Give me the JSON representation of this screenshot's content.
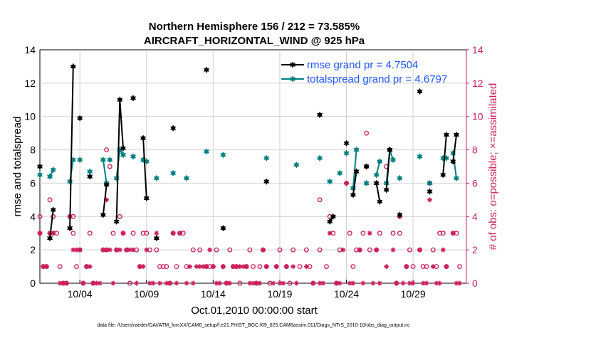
{
  "title_line1": "Northern Hemisphere 156 / 212 = 73.585%",
  "title_line2": "AIRCRAFT_HORIZONTAL_WIND @ 925 hPa",
  "xlabel": "Oct.01,2010 00:00:00 start",
  "ylabel_left": "rmse and totalspread",
  "ylabel_right": "# of obs: o=possible; ×=assimilated",
  "footer": "data file: /Users/raeder/DAI/ATM_forcXX/CAM6_setup/f.e21.FHIST_BGC.f09_025.CAM6assim.011/Diags_NTrS_2010-10/obs_diag_output.nc",
  "chart_data": {
    "type": "line",
    "xlim": [
      1,
      33
    ],
    "ylim_left": [
      0,
      14
    ],
    "ylim_right": [
      0,
      14
    ],
    "xticks": [
      {
        "x": 4,
        "label": "10/04"
      },
      {
        "x": 9,
        "label": "10/09"
      },
      {
        "x": 14,
        "label": "10/14"
      },
      {
        "x": 19,
        "label": "10/19"
      },
      {
        "x": 24,
        "label": "10/24"
      },
      {
        "x": 29,
        "label": "10/29"
      }
    ],
    "yticks_left": [
      "0",
      "2",
      "4",
      "6",
      "8",
      "10",
      "12",
      "14"
    ],
    "yticks_right": [
      "0",
      "2",
      "4",
      "6",
      "8",
      "10",
      "12",
      "14"
    ],
    "legend": [
      {
        "label": "rmse grand pr = 4.7504",
        "color": "#000000",
        "marker": "hexagram"
      },
      {
        "label": "totalspread grand pr = 4.6797",
        "color": "#008080",
        "marker": "hexagram"
      }
    ],
    "colors": {
      "rmse": "#000000",
      "spread": "#008080",
      "obs": "#cc1f5a",
      "legend_text": "#1a53ff"
    },
    "rmse_segments": [
      [
        [
          1.0,
          7.0
        ]
      ],
      [
        [
          1.75,
          2.7
        ],
        [
          2.0,
          4.4
        ]
      ],
      [
        [
          3.25,
          3.3
        ],
        [
          3.5,
          13.0
        ]
      ],
      [
        [
          4.0,
          9.9
        ]
      ],
      [
        [
          4.75,
          6.4
        ]
      ],
      [
        [
          5.75,
          4.1
        ],
        [
          6.0,
          5.9
        ]
      ],
      [
        [
          6.75,
          3.7
        ],
        [
          7.0,
          11.0
        ],
        [
          7.25,
          8.1
        ]
      ],
      [
        [
          8.0,
          11.1
        ]
      ],
      [
        [
          8.75,
          8.7
        ],
        [
          9.0,
          5.1
        ]
      ],
      [
        [
          9.75,
          2.7
        ]
      ],
      [
        [
          11.0,
          9.3
        ]
      ],
      [
        [
          13.5,
          12.8
        ]
      ],
      [
        [
          14.75,
          3.3
        ]
      ],
      [
        [
          18.0,
          6.1
        ]
      ],
      [
        [
          22.0,
          10.1
        ]
      ],
      [
        [
          22.75,
          3.7
        ],
        [
          23.0,
          4.0
        ]
      ],
      [
        [
          24.0,
          8.4
        ]
      ],
      [
        [
          24.5,
          5.3
        ],
        [
          24.75,
          6.7
        ]
      ],
      [
        [
          25.5,
          7.0
        ]
      ],
      [
        [
          26.25,
          6.0
        ],
        [
          26.5,
          4.9
        ]
      ],
      [
        [
          27.0,
          5.6
        ],
        [
          27.25,
          8.0
        ]
      ],
      [
        [
          28.0,
          4.1
        ]
      ],
      [
        [
          29.5,
          11.5
        ]
      ],
      [
        [
          30.25,
          5.5
        ]
      ],
      [
        [
          31.25,
          6.5
        ],
        [
          31.5,
          8.9
        ]
      ],
      [
        [
          32.0,
          7.3
        ],
        [
          32.25,
          8.9
        ]
      ]
    ],
    "spread_segments": [
      [
        [
          1.0,
          6.5
        ]
      ],
      [
        [
          1.75,
          6.4
        ],
        [
          2.0,
          6.8
        ]
      ],
      [
        [
          3.25,
          6.1
        ],
        [
          3.5,
          7.4
        ]
      ],
      [
        [
          4.0,
          7.4
        ]
      ],
      [
        [
          4.75,
          6.7
        ]
      ],
      [
        [
          5.75,
          7.4
        ],
        [
          6.0,
          6.0
        ]
      ],
      [
        [
          6.25,
          7.4
        ]
      ],
      [
        [
          6.75,
          6.3
        ],
        [
          7.0,
          8.0
        ],
        [
          7.25,
          7.7
        ]
      ],
      [
        [
          8.0,
          7.6
        ]
      ],
      [
        [
          8.75,
          7.4
        ],
        [
          9.0,
          7.3
        ]
      ],
      [
        [
          9.75,
          6.3
        ]
      ],
      [
        [
          11.0,
          6.6
        ]
      ],
      [
        [
          12.0,
          6.3
        ]
      ],
      [
        [
          13.5,
          7.9
        ]
      ],
      [
        [
          14.75,
          7.7
        ]
      ],
      [
        [
          18.0,
          7.5
        ]
      ],
      [
        [
          20.25,
          7.1
        ]
      ],
      [
        [
          22.0,
          7.5
        ]
      ],
      [
        [
          22.75,
          6.1
        ]
      ],
      [
        [
          23.5,
          6.6
        ]
      ],
      [
        [
          24.0,
          7.8
        ]
      ],
      [
        [
          24.5,
          5.7
        ],
        [
          24.75,
          8.0
        ]
      ],
      [
        [
          25.5,
          6.0
        ]
      ],
      [
        [
          26.25,
          6.5
        ],
        [
          26.5,
          7.3
        ]
      ],
      [
        [
          27.0,
          6.0
        ],
        [
          27.25,
          8.0
        ],
        [
          27.5,
          7.4
        ]
      ],
      [
        [
          28.0,
          6.3
        ]
      ],
      [
        [
          29.5,
          7.6
        ]
      ],
      [
        [
          30.25,
          6.0
        ]
      ],
      [
        [
          31.25,
          7.5
        ],
        [
          31.5,
          7.5
        ]
      ],
      [
        [
          32.0,
          7.8
        ],
        [
          32.25,
          6.3
        ]
      ]
    ],
    "obs_possible": [
      [
        1.0,
        4
      ],
      [
        1.0,
        3
      ],
      [
        1.25,
        1
      ],
      [
        1.5,
        1
      ],
      [
        1.75,
        3
      ],
      [
        2.0,
        3
      ],
      [
        1.75,
        5
      ],
      [
        2.0,
        4
      ],
      [
        2.25,
        3
      ],
      [
        2.5,
        1
      ],
      [
        2.75,
        0
      ],
      [
        3.0,
        0
      ],
      [
        3.25,
        4
      ],
      [
        3.5,
        4
      ],
      [
        3.5,
        3
      ],
      [
        3.75,
        1
      ],
      [
        4.0,
        2
      ],
      [
        4.25,
        0
      ],
      [
        4.5,
        1
      ],
      [
        4.75,
        3
      ],
      [
        5.0,
        0
      ],
      [
        5.75,
        2
      ],
      [
        6.0,
        2
      ],
      [
        6.0,
        8
      ],
      [
        6.25,
        7
      ],
      [
        6.5,
        3
      ],
      [
        6.75,
        2
      ],
      [
        7.0,
        4
      ],
      [
        7.25,
        3
      ],
      [
        7.5,
        2
      ],
      [
        7.75,
        0
      ],
      [
        8.0,
        3
      ],
      [
        8.25,
        2
      ],
      [
        8.5,
        1
      ],
      [
        8.75,
        3
      ],
      [
        9.0,
        3
      ],
      [
        9.25,
        2
      ],
      [
        9.75,
        2
      ],
      [
        10.0,
        1
      ],
      [
        10.25,
        1
      ],
      [
        10.5,
        1
      ],
      [
        10.75,
        0
      ],
      [
        11.0,
        3
      ],
      [
        11.25,
        1
      ],
      [
        11.5,
        3
      ],
      [
        11.75,
        3
      ],
      [
        12.0,
        1
      ],
      [
        12.5,
        2
      ],
      [
        13.0,
        2
      ],
      [
        13.5,
        1
      ],
      [
        13.75,
        1
      ],
      [
        14.0,
        1
      ],
      [
        14.25,
        2
      ],
      [
        14.75,
        1
      ],
      [
        15.0,
        0
      ],
      [
        15.25,
        2
      ],
      [
        15.5,
        1
      ],
      [
        15.75,
        1
      ],
      [
        16.0,
        0
      ],
      [
        16.5,
        1
      ],
      [
        16.75,
        2
      ],
      [
        17.0,
        1
      ],
      [
        17.25,
        0
      ],
      [
        17.5,
        1
      ],
      [
        17.75,
        2
      ],
      [
        18.0,
        1
      ],
      [
        18.25,
        0
      ],
      [
        18.75,
        1
      ],
      [
        19.0,
        2
      ],
      [
        19.5,
        1
      ],
      [
        19.75,
        0
      ],
      [
        20.0,
        2
      ],
      [
        20.5,
        1
      ],
      [
        21.0,
        2
      ],
      [
        21.25,
        1
      ],
      [
        21.5,
        0
      ],
      [
        22.0,
        2
      ],
      [
        22.0,
        5
      ],
      [
        22.5,
        1
      ],
      [
        22.75,
        4
      ],
      [
        23.0,
        3
      ],
      [
        23.25,
        0
      ],
      [
        23.5,
        2
      ],
      [
        24.0,
        6
      ],
      [
        24.25,
        3
      ],
      [
        24.5,
        1
      ],
      [
        24.75,
        2
      ],
      [
        25.0,
        2
      ],
      [
        25.25,
        3
      ],
      [
        25.5,
        7
      ],
      [
        25.5,
        9
      ],
      [
        25.75,
        2
      ],
      [
        26.25,
        2
      ],
      [
        26.5,
        3
      ],
      [
        27.0,
        7
      ],
      [
        27.25,
        8
      ],
      [
        27.5,
        3
      ],
      [
        27.75,
        0
      ],
      [
        28.0,
        4
      ],
      [
        28.0,
        3
      ],
      [
        28.5,
        1
      ],
      [
        28.75,
        2
      ],
      [
        29.0,
        1
      ],
      [
        29.5,
        2
      ],
      [
        29.75,
        1
      ],
      [
        30.0,
        1
      ],
      [
        30.25,
        6
      ],
      [
        30.5,
        2
      ],
      [
        30.75,
        1
      ],
      [
        31.0,
        3
      ],
      [
        31.25,
        3
      ],
      [
        31.5,
        1
      ],
      [
        32.0,
        3
      ],
      [
        32.25,
        3
      ],
      [
        32.5,
        1
      ]
    ],
    "obs_assimilated": [
      [
        1.0,
        3
      ],
      [
        1.25,
        1
      ],
      [
        1.5,
        1
      ],
      [
        1.75,
        3
      ],
      [
        2.0,
        3
      ],
      [
        2.5,
        0
      ],
      [
        2.75,
        0
      ],
      [
        3.0,
        0
      ],
      [
        3.25,
        4
      ],
      [
        3.5,
        2
      ],
      [
        3.75,
        2
      ],
      [
        4.0,
        2
      ],
      [
        4.25,
        0
      ],
      [
        4.5,
        1
      ],
      [
        4.75,
        1
      ],
      [
        5.0,
        0
      ],
      [
        5.25,
        0
      ],
      [
        5.5,
        0
      ],
      [
        5.75,
        2
      ],
      [
        6.0,
        5
      ],
      [
        6.0,
        2
      ],
      [
        6.25,
        2
      ],
      [
        6.5,
        0
      ],
      [
        6.75,
        2
      ],
      [
        7.0,
        2
      ],
      [
        7.25,
        3
      ],
      [
        7.5,
        2
      ],
      [
        7.75,
        2
      ],
      [
        8.0,
        2
      ],
      [
        8.25,
        0
      ],
      [
        8.5,
        1
      ],
      [
        8.75,
        1
      ],
      [
        9.0,
        2
      ],
      [
        9.25,
        0
      ],
      [
        9.5,
        0
      ],
      [
        9.75,
        3
      ],
      [
        10.0,
        0
      ],
      [
        10.5,
        0
      ],
      [
        10.75,
        0
      ],
      [
        11.0,
        3
      ],
      [
        11.25,
        0
      ],
      [
        11.5,
        3
      ],
      [
        12.0,
        0
      ],
      [
        12.25,
        1
      ],
      [
        12.5,
        0
      ],
      [
        12.75,
        1
      ],
      [
        13.0,
        1
      ],
      [
        13.25,
        1
      ],
      [
        13.5,
        1
      ],
      [
        13.75,
        2
      ],
      [
        14.0,
        1
      ],
      [
        14.25,
        0
      ],
      [
        14.5,
        0
      ],
      [
        14.75,
        1
      ],
      [
        15.0,
        0
      ],
      [
        15.25,
        0
      ],
      [
        15.5,
        1
      ],
      [
        15.75,
        1
      ],
      [
        16.0,
        1
      ],
      [
        16.25,
        1
      ],
      [
        16.5,
        1
      ],
      [
        16.75,
        0
      ],
      [
        17.0,
        0
      ],
      [
        17.25,
        0
      ],
      [
        17.5,
        0
      ],
      [
        17.75,
        2
      ],
      [
        18.0,
        1
      ],
      [
        18.5,
        0
      ],
      [
        18.75,
        1
      ],
      [
        19.0,
        0
      ],
      [
        19.25,
        0
      ],
      [
        19.5,
        1
      ],
      [
        20.0,
        1
      ],
      [
        20.25,
        0
      ],
      [
        21.0,
        1
      ],
      [
        21.5,
        0
      ],
      [
        22.0,
        0
      ],
      [
        22.25,
        0
      ],
      [
        22.75,
        3
      ],
      [
        23.0,
        4
      ],
      [
        23.25,
        0
      ],
      [
        23.5,
        0
      ],
      [
        23.75,
        2
      ],
      [
        24.0,
        6
      ],
      [
        24.25,
        0
      ],
      [
        24.5,
        0
      ],
      [
        25.0,
        2
      ],
      [
        25.25,
        0
      ],
      [
        25.5,
        7
      ],
      [
        25.75,
        3
      ],
      [
        26.0,
        0
      ],
      [
        26.25,
        2
      ],
      [
        26.5,
        0
      ],
      [
        27.0,
        1
      ],
      [
        27.25,
        8
      ],
      [
        27.5,
        2
      ],
      [
        27.75,
        0
      ],
      [
        28.0,
        4
      ],
      [
        28.25,
        0
      ],
      [
        28.5,
        1
      ],
      [
        28.75,
        0
      ],
      [
        29.0,
        0
      ],
      [
        29.5,
        2
      ],
      [
        29.75,
        0
      ],
      [
        30.0,
        0
      ],
      [
        30.25,
        5
      ],
      [
        30.5,
        1
      ],
      [
        30.75,
        0
      ],
      [
        31.0,
        0
      ],
      [
        31.25,
        2
      ],
      [
        31.5,
        1
      ],
      [
        32.0,
        3
      ],
      [
        32.25,
        0
      ],
      [
        32.5,
        0
      ]
    ]
  }
}
